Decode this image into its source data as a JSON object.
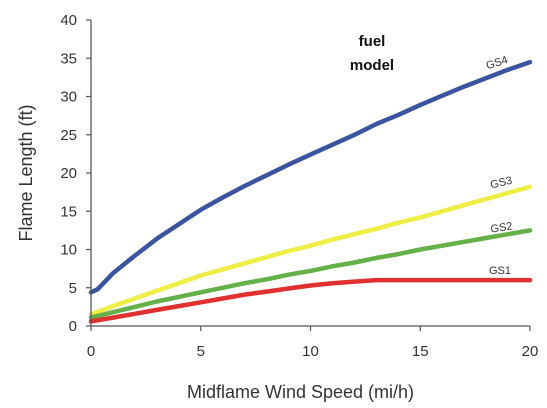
{
  "chart_data": {
    "type": "line",
    "title": "",
    "xlabel": "Midflame Wind Speed (mi/h)",
    "ylabel": "Flame Length (ft)",
    "xlim": [
      0,
      20
    ],
    "ylim": [
      0,
      40
    ],
    "xticks": [
      0,
      5,
      10,
      15,
      20
    ],
    "yticks": [
      0,
      5,
      10,
      15,
      20,
      25,
      30,
      35,
      40
    ],
    "grid": false,
    "legend": "none",
    "annotation": {
      "lines": [
        "fuel",
        "model"
      ]
    },
    "series": [
      {
        "name": "GS4",
        "color": "#3a54a0",
        "x": [
          0,
          0.3,
          1,
          2,
          3,
          4,
          5,
          6,
          7,
          8,
          9,
          10,
          11,
          12,
          13,
          14,
          15,
          16,
          17,
          18,
          19,
          20
        ],
        "y": [
          4.4,
          4.8,
          6.9,
          9.2,
          11.4,
          13.3,
          15.2,
          16.8,
          18.3,
          19.7,
          21.1,
          22.4,
          23.7,
          25.0,
          26.4,
          27.6,
          28.9,
          30.1,
          31.3,
          32.4,
          33.5,
          34.5
        ]
      },
      {
        "name": "GS3",
        "color": "#eeee44",
        "x": [
          0,
          1,
          2,
          3,
          4,
          5,
          6,
          7,
          8,
          9,
          10,
          11,
          12,
          13,
          14,
          15,
          16,
          17,
          18,
          19,
          20
        ],
        "y": [
          1.5,
          2.6,
          3.6,
          4.6,
          5.6,
          6.6,
          7.4,
          8.2,
          9.0,
          9.8,
          10.5,
          11.3,
          12.0,
          12.7,
          13.5,
          14.2,
          15.0,
          15.8,
          16.6,
          17.4,
          18.2
        ]
      },
      {
        "name": "GS2",
        "color": "#66b04a",
        "x": [
          0,
          1,
          2,
          3,
          4,
          5,
          6,
          7,
          8,
          9,
          10,
          11,
          12,
          13,
          14,
          15,
          16,
          17,
          18,
          19,
          20
        ],
        "y": [
          1.1,
          1.8,
          2.5,
          3.2,
          3.8,
          4.4,
          5.0,
          5.6,
          6.1,
          6.7,
          7.2,
          7.8,
          8.3,
          8.9,
          9.4,
          10.0,
          10.5,
          11.0,
          11.5,
          12.0,
          12.5
        ]
      },
      {
        "name": "GS1",
        "color": "#e03030",
        "x": [
          0,
          1,
          2,
          3,
          4,
          5,
          6,
          7,
          8,
          9,
          10,
          11,
          12,
          13,
          14,
          15,
          16,
          17,
          18,
          19,
          20
        ],
        "y": [
          0.6,
          1.1,
          1.6,
          2.1,
          2.6,
          3.1,
          3.6,
          4.1,
          4.5,
          4.9,
          5.3,
          5.6,
          5.8,
          6.0,
          6.0,
          6.0,
          6.0,
          6.0,
          6.0,
          6.0,
          6.0
        ]
      }
    ]
  }
}
